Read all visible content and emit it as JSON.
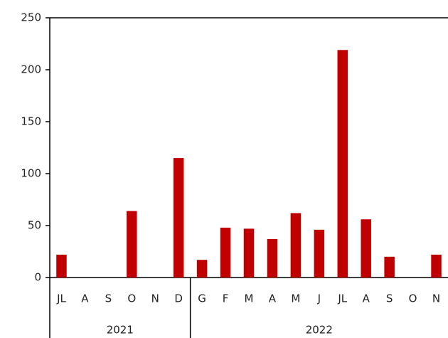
{
  "chart_data": {
    "type": "bar",
    "categories": [
      "JL",
      "A",
      "S",
      "O",
      "N",
      "D",
      "G",
      "F",
      "M",
      "A",
      "M",
      "J",
      "JL",
      "A",
      "S",
      "O",
      "N"
    ],
    "category_years": [
      "2021",
      "2021",
      "2021",
      "2021",
      "2021",
      "2021",
      "2022",
      "2022",
      "2022",
      "2022",
      "2022",
      "2022",
      "2022",
      "2022",
      "2022",
      "2022",
      "2022"
    ],
    "values": [
      22,
      0,
      0,
      64,
      0,
      115,
      17,
      48,
      47,
      37,
      62,
      46,
      219,
      56,
      20,
      0,
      22
    ],
    "color": "#c00000",
    "ylim": [
      0,
      250
    ],
    "yticks": [
      0,
      50,
      100,
      150,
      200,
      250
    ],
    "grid": false
  }
}
